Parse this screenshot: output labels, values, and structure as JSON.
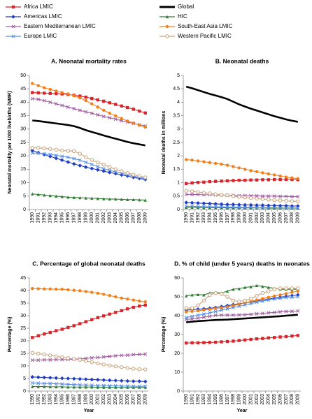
{
  "legend": [
    {
      "name": "Africa LMIC",
      "color": "#d7262b",
      "marker": "square"
    },
    {
      "name": "Global",
      "color": "#000000",
      "marker": "none"
    },
    {
      "name": "Americas LMIC",
      "color": "#1f3cc0",
      "marker": "diamond"
    },
    {
      "name": "HIC",
      "color": "#2e7d32",
      "marker": "triangle"
    },
    {
      "name": "Eastern Mediterranean LMIC",
      "color": "#a05ca0",
      "marker": "x"
    },
    {
      "name": "South-East Asia LMIC",
      "color": "#f07f1a",
      "marker": "circle"
    },
    {
      "name": "Europe LMIC",
      "color": "#5b8fe6",
      "marker": "x"
    },
    {
      "name": "Western Pacific LMIC",
      "color": "#c8a27a",
      "marker": "open-circle"
    }
  ],
  "chart_data": [
    {
      "type": "line",
      "title": "A. Neonatal mortality rates",
      "ylabel": "Neonatal mortality per 1000 livebirths (NMR)",
      "categories": [
        "1990",
        "1991",
        "1992",
        "1993",
        "1994",
        "1995",
        "1996",
        "1997",
        "1998",
        "1999",
        "2000",
        "2001",
        "2002",
        "2003",
        "2004",
        "2005",
        "2006",
        "2007",
        "2008",
        "2009"
      ],
      "ylim": [
        0,
        50
      ],
      "yticks": [
        0,
        5,
        10,
        15,
        20,
        25,
        30,
        35,
        40,
        45,
        50
      ],
      "series": [
        {
          "values": [
            43.6,
            43.5,
            43.4,
            43.3,
            43.2,
            43.1,
            42.9,
            42.6,
            42.3,
            41.9,
            41.4,
            40.9,
            40.4,
            39.8,
            39.2,
            38.6,
            38,
            37.4,
            36.7,
            36.0
          ]
        },
        {
          "values": [
            33.2,
            33.0,
            32.7,
            32.4,
            32.1,
            31.8,
            31.5,
            31.1,
            30.4,
            29.6,
            28.9,
            28.3,
            27.6,
            27.0,
            26.4,
            25.8,
            25.2,
            24.7,
            24.3,
            23.9
          ]
        },
        {
          "values": [
            22,
            21.2,
            20.5,
            19.8,
            19.1,
            18.4,
            17.7,
            17.0,
            16.4,
            15.8,
            15.3,
            14.8,
            14.3,
            13.8,
            13.4,
            12.9,
            12.5,
            12.0,
            11.6,
            11.2
          ]
        },
        {
          "values": [
            5.8,
            5.6,
            5.4,
            5.2,
            5.0,
            4.8,
            4.6,
            4.5,
            4.4,
            4.3,
            4.2,
            4.1,
            4.0,
            3.9,
            3.9,
            3.8,
            3.7,
            3.7,
            3.6,
            3.5
          ]
        },
        {
          "values": [
            41.3,
            41.1,
            40.6,
            40.0,
            39.4,
            38.8,
            38.2,
            37.6,
            37.0,
            36.4,
            35.9,
            35.3,
            34.7,
            34.2,
            33.7,
            33.1,
            32.6,
            32.1,
            31.6,
            31.1
          ]
        },
        {
          "values": [
            47,
            46.2,
            45.4,
            44.8,
            44.2,
            43.6,
            43.1,
            42.4,
            41.6,
            40.6,
            39.4,
            38.2,
            37.0,
            35.9,
            34.9,
            33.9,
            33.0,
            32.2,
            31.5,
            30.7
          ]
        },
        {
          "values": [
            21,
            21,
            20.8,
            20.5,
            20.2,
            19.8,
            19.5,
            19.0,
            18.4,
            17.6,
            16.8,
            16.0,
            15.2,
            14.6,
            14.0,
            13.5,
            13.0,
            12.5,
            12.0,
            11.5
          ]
        },
        {
          "values": [
            23,
            23,
            22.8,
            22.6,
            22.3,
            22.0,
            21.9,
            21.8,
            20.8,
            19.5,
            18.5,
            17.5,
            16.7,
            15.8,
            15.0,
            14.3,
            13.6,
            13.0,
            12.5,
            12.0
          ]
        }
      ]
    },
    {
      "type": "line",
      "title": "B. Neonatal deaths",
      "ylabel": "Neonatal deaths in millions",
      "categories": [
        "1990",
        "1991",
        "1992",
        "1993",
        "1994",
        "1995",
        "1996",
        "1997",
        "1998",
        "1999",
        "2000",
        "2001",
        "2002",
        "2003",
        "2004",
        "2005",
        "2006",
        "2007",
        "2008",
        "2009"
      ],
      "ylim": [
        0,
        5
      ],
      "yticks": [
        0,
        0.5,
        1,
        1.5,
        2,
        2.5,
        3,
        3.5,
        4,
        4.5,
        5
      ],
      "series": [
        {
          "values": [
            0.97,
            0.99,
            1.01,
            1.02,
            1.04,
            1.05,
            1.06,
            1.07,
            1.08,
            1.09,
            1.09,
            1.1,
            1.1,
            1.11,
            1.11,
            1.12,
            1.12,
            1.12,
            1.12,
            1.11
          ]
        },
        {
          "values": [
            4.58,
            4.52,
            4.45,
            4.38,
            4.31,
            4.25,
            4.19,
            4.12,
            4.02,
            3.92,
            3.84,
            3.76,
            3.69,
            3.62,
            3.55,
            3.48,
            3.42,
            3.36,
            3.31,
            3.27
          ]
        },
        {
          "values": [
            0.26,
            0.25,
            0.24,
            0.23,
            0.22,
            0.21,
            0.2,
            0.19,
            0.19,
            0.18,
            0.17,
            0.17,
            0.16,
            0.16,
            0.15,
            0.15,
            0.14,
            0.14,
            0.13,
            0.13
          ]
        },
        {
          "values": [
            0.08,
            0.08,
            0.08,
            0.07,
            0.07,
            0.07,
            0.07,
            0.06,
            0.06,
            0.06,
            0.06,
            0.06,
            0.06,
            0.06,
            0.05,
            0.05,
            0.05,
            0.05,
            0.05,
            0.05
          ]
        },
        {
          "values": [
            0.56,
            0.56,
            0.56,
            0.55,
            0.55,
            0.54,
            0.54,
            0.53,
            0.53,
            0.52,
            0.52,
            0.51,
            0.51,
            0.5,
            0.5,
            0.5,
            0.49,
            0.49,
            0.48,
            0.48
          ]
        },
        {
          "values": [
            1.86,
            1.84,
            1.81,
            1.78,
            1.75,
            1.72,
            1.69,
            1.65,
            1.6,
            1.55,
            1.5,
            1.45,
            1.41,
            1.37,
            1.33,
            1.29,
            1.25,
            1.21,
            1.18,
            1.15
          ]
        },
        {
          "values": [
            0.12,
            0.12,
            0.11,
            0.11,
            0.1,
            0.1,
            0.1,
            0.09,
            0.09,
            0.08,
            0.08,
            0.08,
            0.07,
            0.07,
            0.07,
            0.07,
            0.06,
            0.06,
            0.06,
            0.06
          ]
        },
        {
          "values": [
            0.7,
            0.68,
            0.65,
            0.62,
            0.6,
            0.57,
            0.55,
            0.53,
            0.5,
            0.47,
            0.45,
            0.43,
            0.41,
            0.39,
            0.37,
            0.35,
            0.34,
            0.32,
            0.31,
            0.3
          ]
        }
      ]
    },
    {
      "type": "line",
      "title": "C. Percentage of global neonatal deaths",
      "ylabel": "Percentage (%)",
      "xlabel": "Year",
      "categories": [
        "1990",
        "1991",
        "1992",
        "1993",
        "1994",
        "1995",
        "1996",
        "1997",
        "1998",
        "1999",
        "2000",
        "2001",
        "2002",
        "2003",
        "2004",
        "2005",
        "2006",
        "2007",
        "2008",
        "2009"
      ],
      "ylim": [
        0,
        45
      ],
      "yticks": [
        0,
        5,
        10,
        15,
        20,
        25,
        30,
        35,
        40,
        45
      ],
      "series": [
        {
          "values": [
            21.3,
            22,
            22.7,
            23.3,
            24,
            24.6,
            25.3,
            26,
            26.8,
            27.6,
            28.4,
            29.2,
            29.9,
            30.6,
            31.3,
            32,
            32.7,
            33.3,
            33.8,
            34.2
          ]
        },
        null,
        {
          "values": [
            5.6,
            5.5,
            5.4,
            5.3,
            5.2,
            5.1,
            5.0,
            4.9,
            4.8,
            4.7,
            4.6,
            4.5,
            4.4,
            4.3,
            4.2,
            4.1,
            4.0,
            3.9,
            3.9,
            3.8
          ]
        },
        {
          "values": [
            1.8,
            1.8,
            1.8,
            1.7,
            1.7,
            1.7,
            1.6,
            1.6,
            1.6,
            1.6,
            1.6,
            1.5,
            1.5,
            1.5,
            1.5,
            1.5,
            1.5,
            1.5,
            1.5,
            1.5
          ]
        },
        {
          "values": [
            12.3,
            12.3,
            12.4,
            12.4,
            12.5,
            12.5,
            12.6,
            12.7,
            12.8,
            13,
            13.2,
            13.4,
            13.6,
            13.8,
            14,
            14.2,
            14.3,
            14.5,
            14.6,
            14.7
          ]
        },
        {
          "values": [
            40.8,
            40.7,
            40.6,
            40.6,
            40.5,
            40.5,
            40.3,
            40.1,
            39.9,
            39.6,
            39.3,
            38.9,
            38.5,
            38,
            37.5,
            37,
            36.6,
            36.2,
            35.8,
            35.5
          ]
        },
        {
          "values": [
            3.2,
            3.1,
            3.0,
            3.0,
            2.9,
            2.8,
            2.7,
            2.6,
            2.5,
            2.4,
            2.3,
            2.2,
            2.2,
            2.1,
            2.1,
            2.0,
            2.0,
            1.9,
            1.9,
            1.9
          ]
        },
        {
          "values": [
            15.2,
            14.9,
            14.6,
            14.2,
            13.8,
            13.5,
            13.1,
            12.8,
            12.4,
            12,
            11.5,
            11,
            10.6,
            10.2,
            9.8,
            9.5,
            9.2,
            8.9,
            8.7,
            8.6
          ]
        }
      ]
    },
    {
      "type": "line",
      "title": "D. % of child (under 5 years) deaths in neonates",
      "ylabel": "Percentage (%)",
      "xlabel": "Year",
      "categories": [
        "1990",
        "1991",
        "1992",
        "1993",
        "1994",
        "1995",
        "1996",
        "1997",
        "1998",
        "1999",
        "2000",
        "2001",
        "2002",
        "2003",
        "2004",
        "2005",
        "2006",
        "2007",
        "2008",
        "2009"
      ],
      "ylim": [
        0,
        60
      ],
      "yticks": [
        0,
        10,
        20,
        30,
        40,
        50,
        60
      ],
      "series": [
        {
          "values": [
            25.5,
            25.6,
            25.6,
            25.7,
            25.8,
            25.9,
            26.1,
            26.3,
            26.5,
            26.8,
            27.1,
            27.4,
            27.7,
            27.9,
            28.2,
            28.4,
            28.7,
            28.9,
            29.2,
            29.5
          ]
        },
        {
          "values": [
            36.5,
            36.8,
            37.1,
            37.3,
            37.5,
            37.7,
            37.8,
            37.9,
            38.1,
            38.3,
            38.5,
            38.7,
            38.9,
            39.1,
            39.3,
            39.5,
            39.7,
            40,
            40.2,
            40.5
          ]
        },
        {
          "values": [
            43,
            43.2,
            43.4,
            43.6,
            43.9,
            44.3,
            44.8,
            45.3,
            45.8,
            46.3,
            46.8,
            47.3,
            47.8,
            48.3,
            48.8,
            49.3,
            49.8,
            50.2,
            50.6,
            51
          ]
        },
        {
          "values": [
            50.5,
            51,
            51.2,
            51,
            52,
            52.3,
            52,
            53,
            54,
            54.3,
            55,
            55.3,
            56,
            55.5,
            55,
            54.5,
            54,
            54,
            54,
            54
          ]
        },
        {
          "values": [
            38,
            38.3,
            38.7,
            39.2,
            39.7,
            40.2,
            40.3,
            40.3,
            40.3,
            40.4,
            40.5,
            40.7,
            41,
            41.2,
            41.5,
            41.7,
            42,
            42.2,
            42.3,
            42.5
          ]
        },
        {
          "values": [
            42,
            42.3,
            42.6,
            43,
            43.4,
            43.8,
            44.2,
            44.7,
            45.3,
            46,
            46.8,
            47.6,
            48.3,
            49,
            49.7,
            50.4,
            51,
            51.7,
            52.4,
            53
          ]
        },
        {
          "values": [
            39,
            39.6,
            40.2,
            40.8,
            41.5,
            42.2,
            42.9,
            43.6,
            44.3,
            45,
            45.7,
            46.4,
            47.1,
            47.7,
            48.3,
            48.8,
            49.2,
            49.6,
            49.8,
            50
          ]
        },
        {
          "values": [
            44,
            44,
            45.5,
            48,
            51,
            52,
            51.5,
            50,
            48,
            47.5,
            48,
            49,
            50.5,
            52,
            53,
            54,
            54.5,
            54.5,
            54.5,
            54.5
          ]
        }
      ]
    }
  ]
}
